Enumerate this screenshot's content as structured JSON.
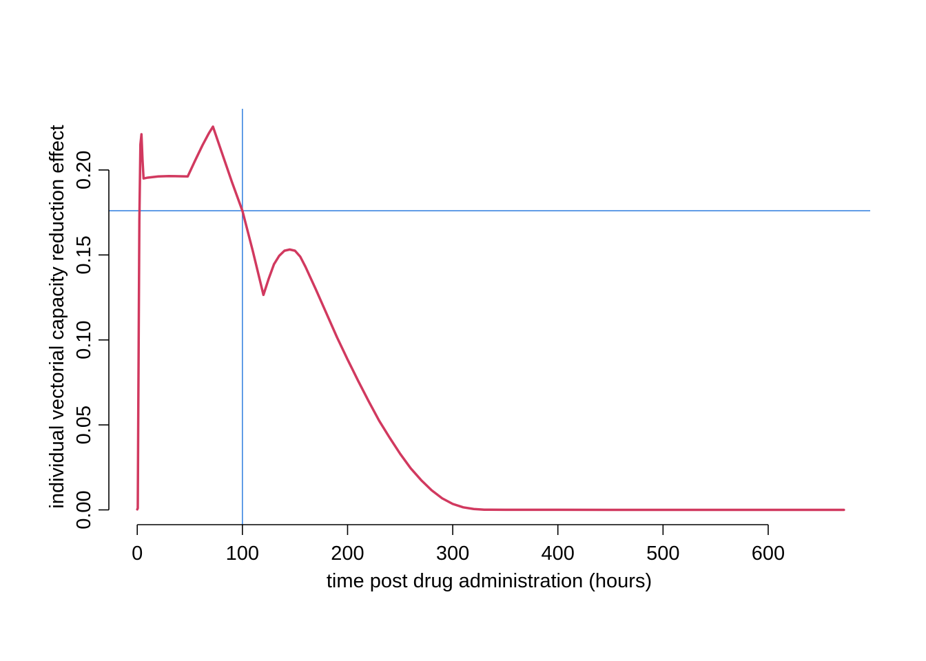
{
  "chart_data": {
    "type": "line",
    "title": "",
    "xlabel": "time post drug administration (hours)",
    "ylabel": "individual vectorial capacity reduction effect",
    "xlim": [
      -27,
      697
    ],
    "ylim": [
      -0.0087,
      0.236
    ],
    "xticks": [
      0,
      100,
      200,
      300,
      400,
      500,
      600
    ],
    "xtick_labels": [
      "0",
      "100",
      "200",
      "300",
      "400",
      "500",
      "600"
    ],
    "yticks": [
      0.0,
      0.05,
      0.1,
      0.15,
      0.2
    ],
    "ytick_labels": [
      "0.00",
      "0.05",
      "0.10",
      "0.15",
      "0.20"
    ],
    "grid": false,
    "legend": "none",
    "series": [
      {
        "color": "#D1395F",
        "x": [
          0,
          0.5,
          1,
          2,
          3,
          4,
          5,
          6,
          10,
          20,
          30,
          40,
          48,
          55,
          62,
          68,
          72,
          80,
          90,
          100,
          110,
          120,
          125,
          130,
          135,
          140,
          145,
          150,
          155,
          160,
          170,
          180,
          190,
          200,
          210,
          220,
          230,
          240,
          250,
          260,
          270,
          280,
          290,
          300,
          310,
          320,
          330,
          335,
          350,
          400,
          450,
          500,
          550,
          600,
          672
        ],
        "y": [
          0.0003,
          0.001,
          0.06,
          0.17,
          0.215,
          0.221,
          0.206,
          0.195,
          0.1955,
          0.1962,
          0.1964,
          0.1963,
          0.1962,
          0.2055,
          0.2145,
          0.2215,
          0.2255,
          0.211,
          0.193,
          0.176,
          0.152,
          0.1265,
          0.136,
          0.1445,
          0.1495,
          0.1525,
          0.1532,
          0.1525,
          0.149,
          0.143,
          0.1295,
          0.1155,
          0.1015,
          0.0885,
          0.076,
          0.064,
          0.0525,
          0.0425,
          0.033,
          0.0245,
          0.0175,
          0.0115,
          0.0068,
          0.0035,
          0.0015,
          0.0005,
          0.0001,
          0.0001,
          8e-05,
          4e-05,
          2e-05,
          1e-05,
          0.0,
          0.0,
          0.0
        ]
      }
    ],
    "reference_lines": {
      "color": "#3B86E0",
      "vertical_x": 100,
      "horizontal_y": 0.176
    }
  }
}
